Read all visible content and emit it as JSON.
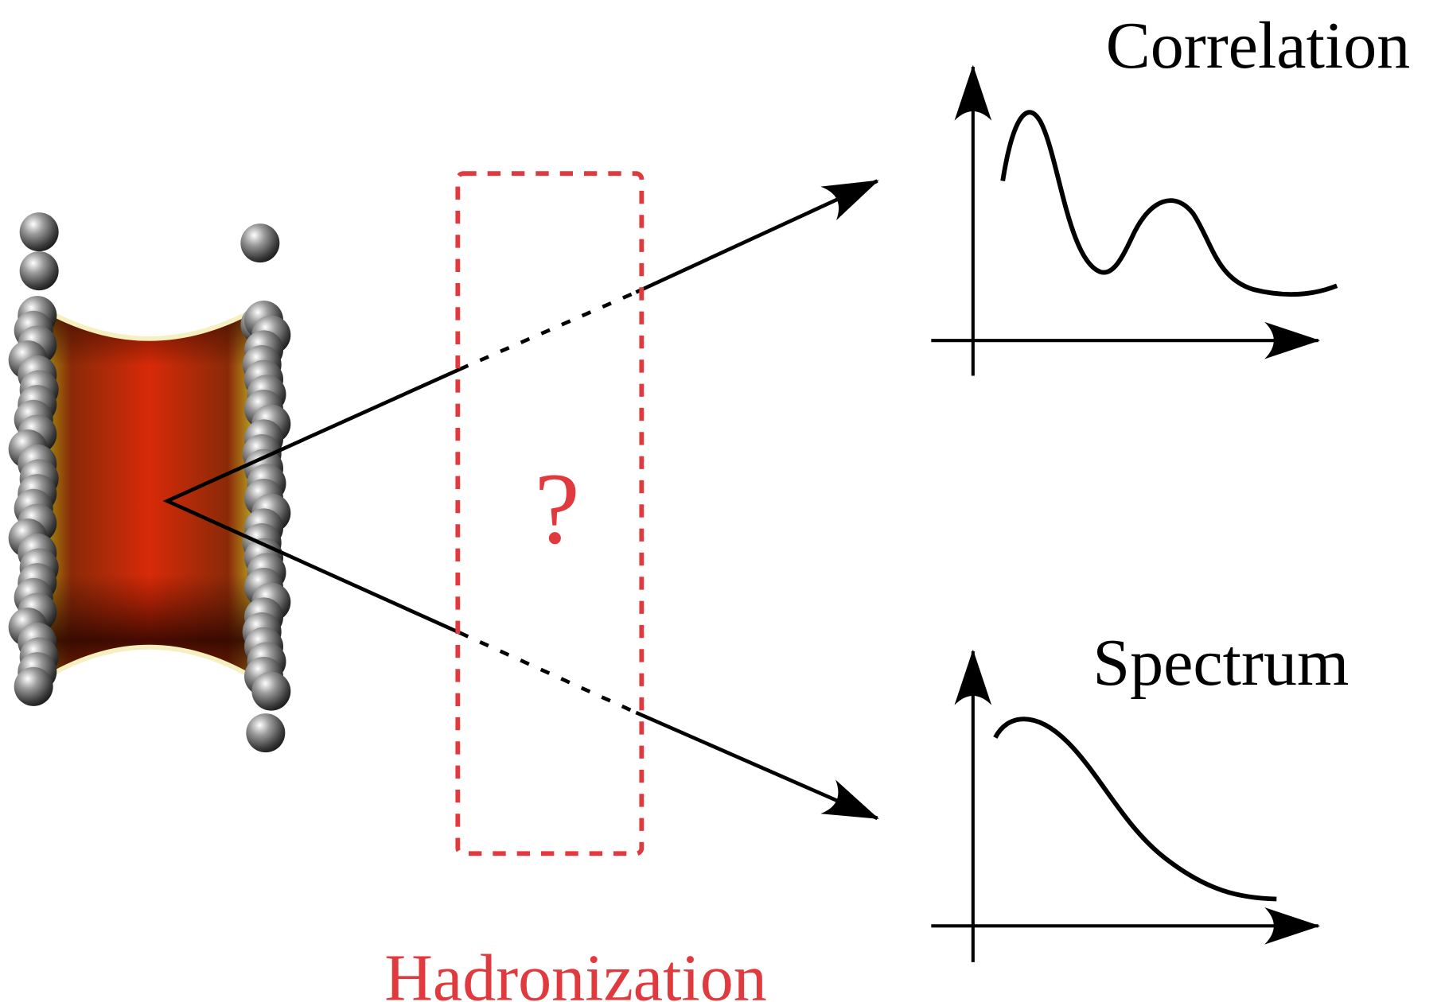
{
  "labels": {
    "correlation": "Correlation",
    "spectrum": "Spectrum",
    "question": "?",
    "hadronization": "Hadronization"
  }
}
